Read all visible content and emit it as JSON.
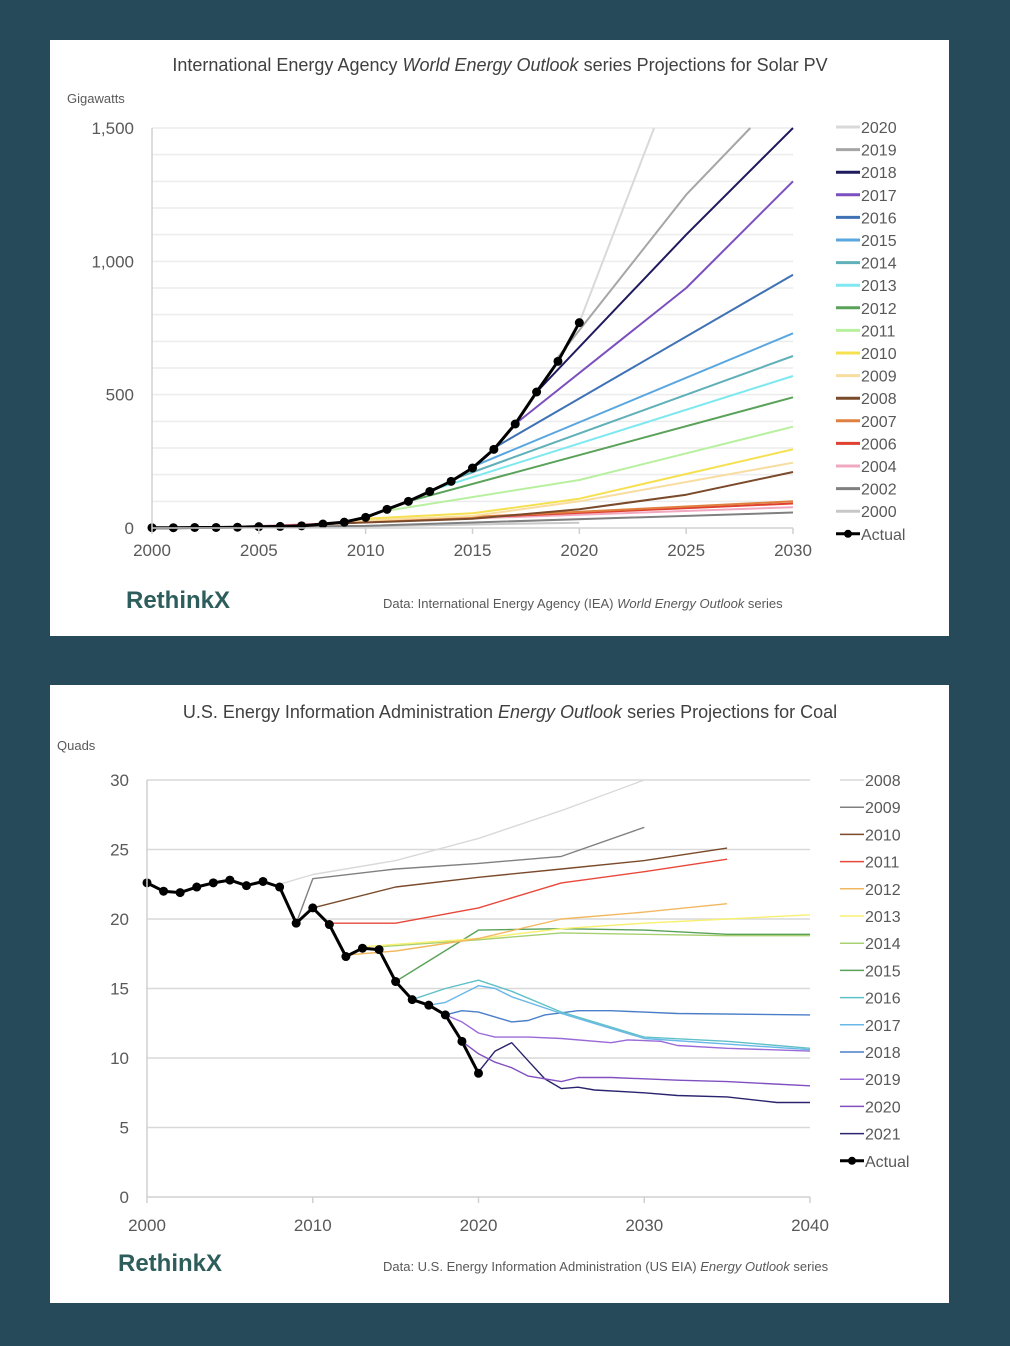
{
  "chart_data": [
    {
      "type": "line",
      "title_parts": [
        "International Energy Agency ",
        "World Energy Outlook",
        " series Projections for Solar PV"
      ],
      "ylabel": "Gigawatts",
      "xlabel": "",
      "xlim": [
        2000,
        2030
      ],
      "ylim": [
        0,
        1500
      ],
      "x_ticks": [
        "2000",
        "2005",
        "2010",
        "2015",
        "2020",
        "2025",
        "2030"
      ],
      "y_ticks": [
        "0",
        "500",
        "1,000",
        "1,500"
      ],
      "grid": true,
      "legend_position": "right",
      "source_parts": [
        "Data: International Energy Agency (IEA) ",
        "World Energy Outlook",
        " series"
      ],
      "logo": "RethinkX",
      "series": [
        {
          "name": "2020",
          "color": "#d9d9d9",
          "x": [
            2020,
            2023.5
          ],
          "y": [
            770,
            1500
          ]
        },
        {
          "name": "2019",
          "color": "#a6a6a6",
          "x": [
            2019,
            2025,
            2028
          ],
          "y": [
            640,
            1250,
            1500
          ]
        },
        {
          "name": "2018",
          "color": "#1f1a5e",
          "x": [
            2018,
            2025,
            2030
          ],
          "y": [
            510,
            1100,
            1500
          ]
        },
        {
          "name": "2017",
          "color": "#7b4fbe",
          "x": [
            2017,
            2025,
            2030
          ],
          "y": [
            390,
            900,
            1300
          ]
        },
        {
          "name": "2016",
          "color": "#3f72b5",
          "x": [
            2016,
            2030
          ],
          "y": [
            300,
            950
          ]
        },
        {
          "name": "2015",
          "color": "#5aa7e0",
          "x": [
            2015,
            2030
          ],
          "y": [
            230,
            730
          ]
        },
        {
          "name": "2014",
          "color": "#5fb0b8",
          "x": [
            2014,
            2030
          ],
          "y": [
            180,
            645
          ]
        },
        {
          "name": "2013",
          "color": "#7ee8f0",
          "x": [
            2013,
            2030
          ],
          "y": [
            140,
            570
          ]
        },
        {
          "name": "2012",
          "color": "#5aa25a",
          "x": [
            2012,
            2030
          ],
          "y": [
            100,
            490
          ]
        },
        {
          "name": "2011",
          "color": "#b8f0a0",
          "x": [
            2011,
            2020,
            2030
          ],
          "y": [
            65,
            180,
            380
          ]
        },
        {
          "name": "2010",
          "color": "#f5e050",
          "x": [
            2010,
            2015,
            2020,
            2030
          ],
          "y": [
            35,
            55,
            110,
            295
          ]
        },
        {
          "name": "2009",
          "color": "#f8dca0",
          "x": [
            2009,
            2015,
            2020,
            2030
          ],
          "y": [
            25,
            45,
            100,
            245
          ]
        },
        {
          "name": "2008",
          "color": "#7a4a2a",
          "x": [
            2008,
            2015,
            2020,
            2025,
            2030
          ],
          "y": [
            15,
            35,
            70,
            125,
            210
          ]
        },
        {
          "name": "2007",
          "color": "#e08040",
          "x": [
            2007,
            2030
          ],
          "y": [
            10,
            100
          ]
        },
        {
          "name": "2006",
          "color": "#e04030",
          "x": [
            2006,
            2030
          ],
          "y": [
            8,
            92
          ]
        },
        {
          "name": "2004",
          "color": "#f0a8c0",
          "x": [
            2004,
            2030
          ],
          "y": [
            5,
            78
          ]
        },
        {
          "name": "2002",
          "color": "#808080",
          "x": [
            2002,
            2010,
            2030
          ],
          "y": [
            3,
            8,
            58
          ]
        },
        {
          "name": "2000",
          "color": "#c8c8c8",
          "x": [
            2000,
            2010,
            2020
          ],
          "y": [
            1,
            6,
            20
          ]
        }
      ],
      "actual": {
        "name": "Actual",
        "color": "#000000",
        "x": [
          2000,
          2001,
          2002,
          2003,
          2004,
          2005,
          2006,
          2007,
          2008,
          2009,
          2010,
          2011,
          2012,
          2013,
          2014,
          2015,
          2016,
          2017,
          2018,
          2019,
          2020
        ],
        "y": [
          1,
          1,
          2,
          2,
          3,
          5,
          6,
          8,
          15,
          22,
          40,
          70,
          100,
          137,
          175,
          225,
          295,
          390,
          510,
          625,
          770
        ]
      }
    },
    {
      "type": "line",
      "title_parts": [
        "U.S. Energy Information Administration ",
        "Energy Outlook",
        " series Projections for Coal"
      ],
      "ylabel": "Quads",
      "xlabel": "",
      "xlim": [
        2000,
        2040
      ],
      "ylim": [
        0,
        30
      ],
      "x_ticks": [
        "2000",
        "2010",
        "2020",
        "2030",
        "2040"
      ],
      "y_ticks": [
        "0",
        "5",
        "10",
        "15",
        "20",
        "25",
        "30"
      ],
      "grid": true,
      "legend_position": "right",
      "source_parts": [
        "Data: U.S. Energy Information Administration (US EIA) ",
        "Energy Outlook",
        " series"
      ],
      "logo": "RethinkX",
      "series": [
        {
          "name": "2008",
          "color": "#d9d9d9",
          "x": [
            2008,
            2010,
            2015,
            2020,
            2025,
            2030
          ],
          "y": [
            22.5,
            23.2,
            24.2,
            25.8,
            27.8,
            30.0
          ]
        },
        {
          "name": "2009",
          "color": "#808080",
          "x": [
            2009,
            2010,
            2015,
            2020,
            2025,
            2030
          ],
          "y": [
            19.7,
            22.9,
            23.6,
            24.0,
            24.5,
            26.6
          ]
        },
        {
          "name": "2010",
          "color": "#7a4a2a",
          "x": [
            2010,
            2015,
            2020,
            2025,
            2030,
            2035
          ],
          "y": [
            20.8,
            22.3,
            23.0,
            23.6,
            24.2,
            25.1
          ]
        },
        {
          "name": "2011",
          "color": "#e8483a",
          "x": [
            2011,
            2015,
            2020,
            2025,
            2030,
            2035
          ],
          "y": [
            19.7,
            19.7,
            20.8,
            22.6,
            23.4,
            24.3
          ]
        },
        {
          "name": "2012",
          "color": "#f2b860",
          "x": [
            2012,
            2015,
            2020,
            2025,
            2030,
            2035
          ],
          "y": [
            17.4,
            17.7,
            18.6,
            20.0,
            20.5,
            21.1
          ]
        },
        {
          "name": "2013",
          "color": "#f8f070",
          "x": [
            2013,
            2020,
            2025,
            2030,
            2035,
            2040
          ],
          "y": [
            18.0,
            18.6,
            19.3,
            19.7,
            20.0,
            20.3
          ]
        },
        {
          "name": "2014",
          "color": "#a8d070",
          "x": [
            2014,
            2020,
            2025,
            2030,
            2035,
            2040
          ],
          "y": [
            18.0,
            18.5,
            19.0,
            18.9,
            18.8,
            18.8
          ]
        },
        {
          "name": "2015",
          "color": "#5aa25a",
          "x": [
            2015,
            2020,
            2025,
            2030,
            2035,
            2040
          ],
          "y": [
            15.5,
            19.2,
            19.3,
            19.2,
            18.9,
            18.9
          ]
        },
        {
          "name": "2016",
          "color": "#60c0c8",
          "x": [
            2016,
            2018,
            2020,
            2022,
            2025,
            2030,
            2035,
            2040
          ],
          "y": [
            14.2,
            15.0,
            15.6,
            14.8,
            13.3,
            11.5,
            11.2,
            10.7
          ]
        },
        {
          "name": "2017",
          "color": "#68b8e8",
          "x": [
            2017,
            2018,
            2020,
            2021,
            2022,
            2025,
            2030,
            2035,
            2040
          ],
          "y": [
            13.8,
            14.0,
            15.2,
            15.0,
            14.4,
            13.2,
            11.4,
            11.0,
            10.6
          ]
        },
        {
          "name": "2018",
          "color": "#4a7ec8",
          "x": [
            2018,
            2019,
            2020,
            2022,
            2023,
            2024,
            2026,
            2028,
            2032,
            2040
          ],
          "y": [
            13.1,
            13.4,
            13.3,
            12.6,
            12.7,
            13.1,
            13.4,
            13.4,
            13.2,
            13.1
          ]
        },
        {
          "name": "2019",
          "color": "#9a6ad8",
          "x": [
            2018,
            2019,
            2020,
            2021,
            2023,
            2025,
            2028,
            2029,
            2031,
            2032,
            2035,
            2040
          ],
          "y": [
            13.1,
            12.6,
            11.8,
            11.5,
            11.5,
            11.4,
            11.1,
            11.3,
            11.2,
            10.9,
            10.7,
            10.5
          ]
        },
        {
          "name": "2020",
          "color": "#8050c0",
          "x": [
            2019,
            2020,
            2021,
            2022,
            2023,
            2025,
            2026,
            2028,
            2032,
            2035,
            2040
          ],
          "y": [
            11.2,
            10.3,
            9.7,
            9.3,
            8.7,
            8.3,
            8.6,
            8.6,
            8.4,
            8.3,
            8.0
          ]
        },
        {
          "name": "2021",
          "color": "#2a246e",
          "x": [
            2020,
            2021,
            2022,
            2023,
            2024,
            2025,
            2026,
            2027,
            2030,
            2032,
            2035,
            2038,
            2040
          ],
          "y": [
            9.0,
            10.5,
            11.1,
            9.8,
            8.5,
            7.8,
            7.9,
            7.7,
            7.5,
            7.3,
            7.2,
            6.8,
            6.8
          ]
        }
      ],
      "actual": {
        "name": "Actual",
        "color": "#000000",
        "x": [
          2000,
          2001,
          2002,
          2003,
          2004,
          2005,
          2006,
          2007,
          2008,
          2009,
          2010,
          2011,
          2012,
          2013,
          2014,
          2015,
          2016,
          2017,
          2018,
          2019,
          2020
        ],
        "y": [
          22.6,
          22.0,
          21.9,
          22.3,
          22.6,
          22.8,
          22.4,
          22.7,
          22.3,
          19.7,
          20.8,
          19.6,
          17.3,
          17.9,
          17.8,
          15.5,
          14.2,
          13.8,
          13.1,
          11.2,
          8.9
        ]
      }
    }
  ]
}
